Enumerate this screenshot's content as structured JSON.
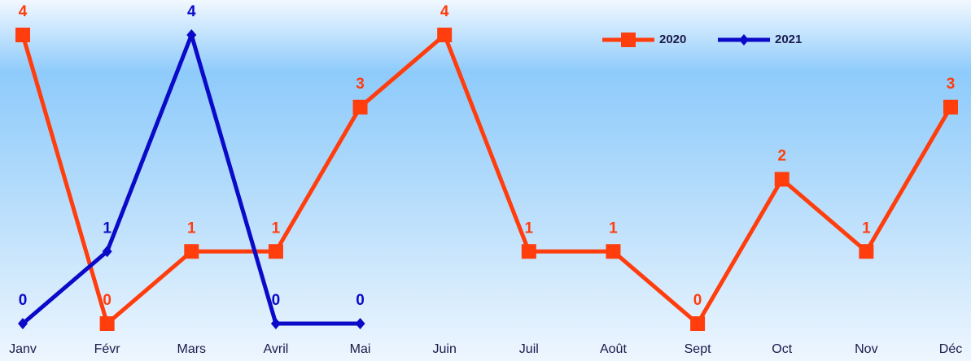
{
  "chart_data": {
    "type": "line",
    "categories": [
      "Janv",
      "Févr",
      "Mars",
      "Avril",
      "Mai",
      "Juin",
      "Juil",
      "Août",
      "Sept",
      "Oct",
      "Nov",
      "Déc"
    ],
    "series": [
      {
        "name": "2020",
        "color": "#ff3d0d",
        "marker": "square",
        "values": [
          4,
          0,
          1,
          1,
          3,
          4,
          1,
          1,
          0,
          2,
          1,
          3
        ]
      },
      {
        "name": "2021",
        "color": "#0a0ac8",
        "marker": "diamond",
        "values": [
          0,
          1,
          4,
          0,
          0,
          null,
          null,
          null,
          null,
          null,
          null,
          null
        ]
      }
    ],
    "ylim": [
      0,
      4
    ]
  }
}
